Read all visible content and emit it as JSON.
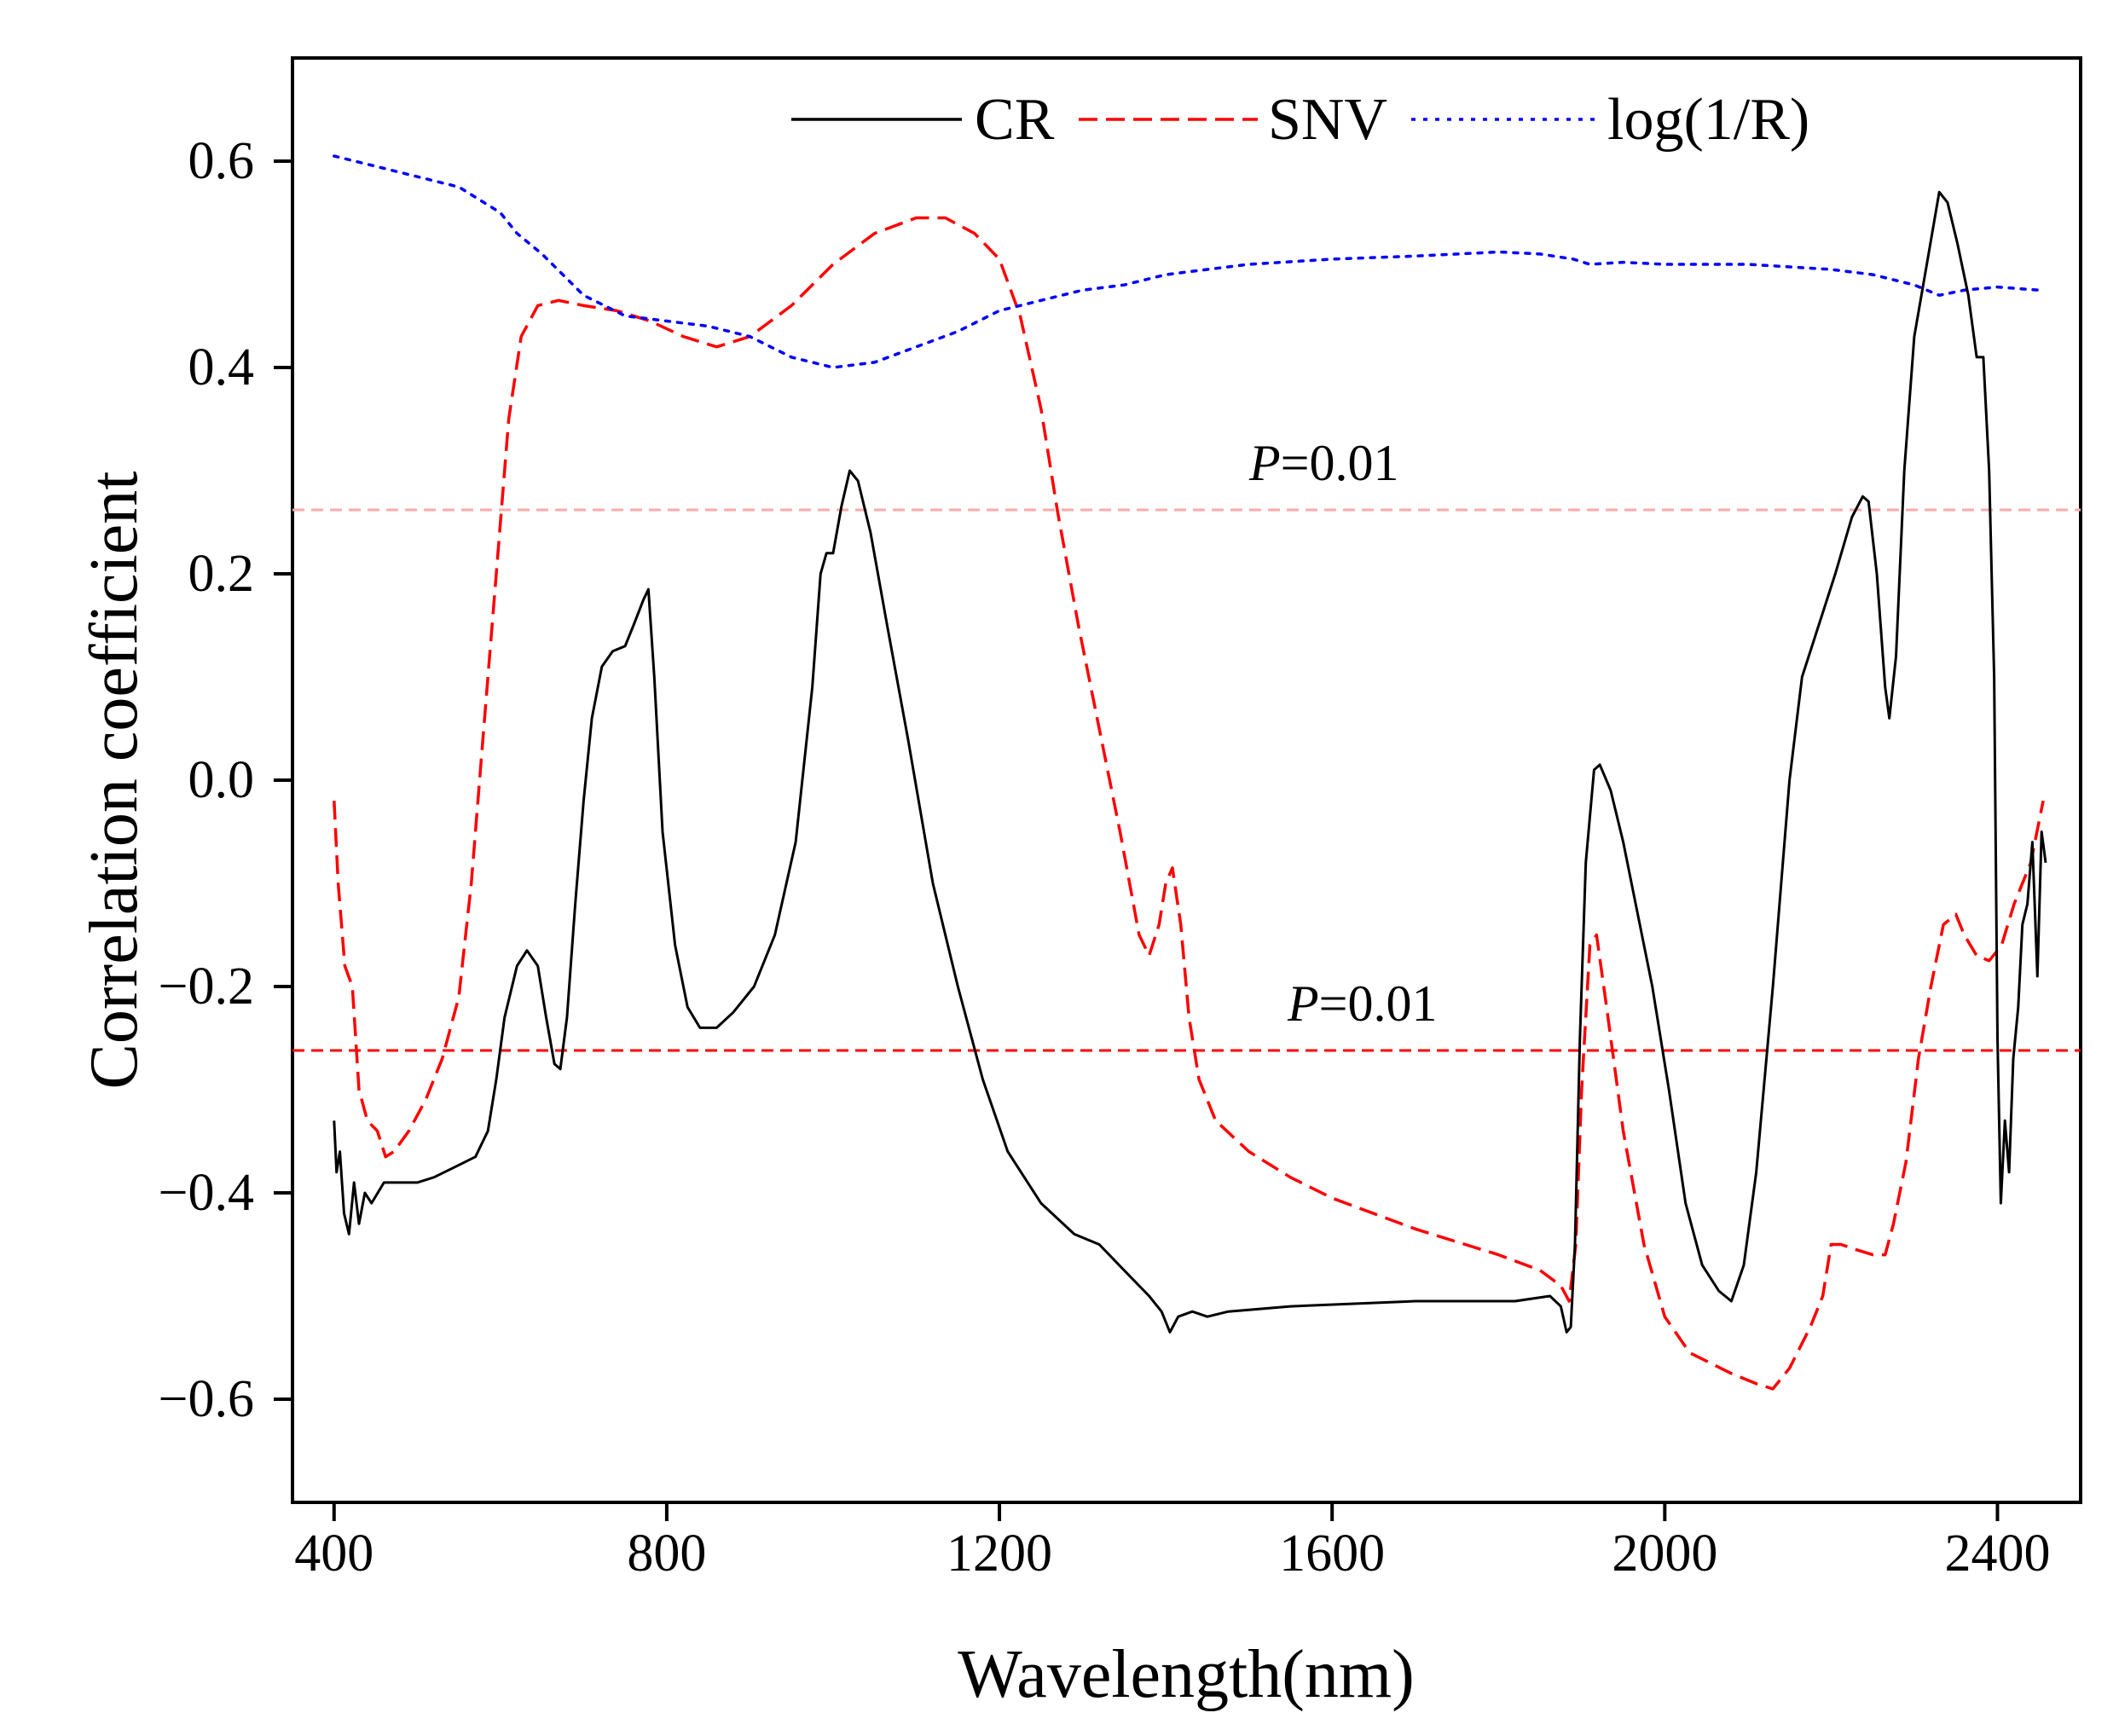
{
  "chart_data": {
    "type": "line",
    "xlabel": "Wavelength(nm)",
    "ylabel": "Correlation coefficient",
    "xlim": [
      350,
      2500
    ],
    "ylim": [
      -0.7,
      0.7
    ],
    "xticks": [
      400,
      800,
      1200,
      1600,
      2000,
      2400
    ],
    "yticks": [
      -0.6,
      -0.4,
      -0.2,
      0.0,
      0.2,
      0.4,
      0.6
    ],
    "ytick_labels": [
      "−0.6",
      "−0.4",
      "−0.2",
      "0.0",
      "0.2",
      "0.4",
      "0.6"
    ],
    "legend_position": "top",
    "series": [
      {
        "name": "CR",
        "color": "#000000",
        "style": "solid",
        "points": [
          [
            400,
            -0.33
          ],
          [
            403,
            -0.38
          ],
          [
            407,
            -0.36
          ],
          [
            412,
            -0.42
          ],
          [
            418,
            -0.44
          ],
          [
            424,
            -0.39
          ],
          [
            430,
            -0.43
          ],
          [
            437,
            -0.4
          ],
          [
            445,
            -0.41
          ],
          [
            460,
            -0.39
          ],
          [
            480,
            -0.39
          ],
          [
            500,
            -0.39
          ],
          [
            520,
            -0.385
          ],
          [
            545,
            -0.375
          ],
          [
            570,
            -0.365
          ],
          [
            585,
            -0.34
          ],
          [
            595,
            -0.29
          ],
          [
            605,
            -0.23
          ],
          [
            620,
            -0.18
          ],
          [
            632,
            -0.165
          ],
          [
            645,
            -0.18
          ],
          [
            655,
            -0.23
          ],
          [
            665,
            -0.275
          ],
          [
            672,
            -0.28
          ],
          [
            680,
            -0.23
          ],
          [
            690,
            -0.12
          ],
          [
            700,
            -0.02
          ],
          [
            710,
            0.06
          ],
          [
            722,
            0.11
          ],
          [
            735,
            0.125
          ],
          [
            750,
            0.13
          ],
          [
            760,
            0.15
          ],
          [
            772,
            0.175
          ],
          [
            778,
            0.185
          ],
          [
            785,
            0.1
          ],
          [
            795,
            -0.05
          ],
          [
            810,
            -0.16
          ],
          [
            825,
            -0.22
          ],
          [
            840,
            -0.24
          ],
          [
            860,
            -0.24
          ],
          [
            880,
            -0.225
          ],
          [
            905,
            -0.2
          ],
          [
            930,
            -0.15
          ],
          [
            955,
            -0.06
          ],
          [
            975,
            0.09
          ],
          [
            985,
            0.2
          ],
          [
            992,
            0.22
          ],
          [
            1000,
            0.22
          ],
          [
            1010,
            0.265
          ],
          [
            1020,
            0.3
          ],
          [
            1030,
            0.29
          ],
          [
            1045,
            0.24
          ],
          [
            1065,
            0.15
          ],
          [
            1090,
            0.04
          ],
          [
            1120,
            -0.1
          ],
          [
            1150,
            -0.2
          ],
          [
            1180,
            -0.29
          ],
          [
            1210,
            -0.36
          ],
          [
            1250,
            -0.41
          ],
          [
            1290,
            -0.44
          ],
          [
            1320,
            -0.45
          ],
          [
            1350,
            -0.475
          ],
          [
            1380,
            -0.5
          ],
          [
            1395,
            -0.515
          ],
          [
            1405,
            -0.535
          ],
          [
            1415,
            -0.52
          ],
          [
            1432,
            -0.515
          ],
          [
            1450,
            -0.52
          ],
          [
            1475,
            -0.515
          ],
          [
            1550,
            -0.51
          ],
          [
            1700,
            -0.505
          ],
          [
            1820,
            -0.505
          ],
          [
            1862,
            -0.5
          ],
          [
            1875,
            -0.51
          ],
          [
            1882,
            -0.535
          ],
          [
            1887,
            -0.53
          ],
          [
            1892,
            -0.45
          ],
          [
            1898,
            -0.25
          ],
          [
            1905,
            -0.08
          ],
          [
            1915,
            0.01
          ],
          [
            1922,
            0.015
          ],
          [
            1935,
            -0.01
          ],
          [
            1950,
            -0.06
          ],
          [
            1965,
            -0.12
          ],
          [
            1985,
            -0.2
          ],
          [
            2005,
            -0.3
          ],
          [
            2025,
            -0.41
          ],
          [
            2045,
            -0.47
          ],
          [
            2065,
            -0.495
          ],
          [
            2080,
            -0.505
          ],
          [
            2095,
            -0.47
          ],
          [
            2110,
            -0.38
          ],
          [
            2130,
            -0.2
          ],
          [
            2150,
            0.0
          ],
          [
            2165,
            0.1
          ],
          [
            2185,
            0.15
          ],
          [
            2205,
            0.2
          ],
          [
            2225,
            0.255
          ],
          [
            2238,
            0.275
          ],
          [
            2245,
            0.27
          ],
          [
            2255,
            0.2
          ],
          [
            2265,
            0.09
          ],
          [
            2270,
            0.06
          ],
          [
            2278,
            0.12
          ],
          [
            2288,
            0.3
          ],
          [
            2300,
            0.43
          ],
          [
            2315,
            0.5
          ],
          [
            2330,
            0.57
          ],
          [
            2340,
            0.56
          ],
          [
            2352,
            0.52
          ],
          [
            2365,
            0.47
          ],
          [
            2375,
            0.41
          ],
          [
            2383,
            0.41
          ],
          [
            2390,
            0.3
          ],
          [
            2396,
            0.1
          ],
          [
            2400,
            -0.25
          ],
          [
            2404,
            -0.41
          ],
          [
            2409,
            -0.33
          ],
          [
            2414,
            -0.38
          ],
          [
            2419,
            -0.27
          ],
          [
            2425,
            -0.22
          ],
          [
            2430,
            -0.14
          ],
          [
            2436,
            -0.12
          ],
          [
            2442,
            -0.06
          ],
          [
            2448,
            -0.19
          ],
          [
            2453,
            -0.05
          ],
          [
            2458,
            -0.08
          ]
        ]
      },
      {
        "name": "SNV",
        "color": "#ff0000",
        "style": "dashed",
        "points": [
          [
            400,
            -0.02
          ],
          [
            405,
            -0.1
          ],
          [
            413,
            -0.18
          ],
          [
            422,
            -0.2
          ],
          [
            430,
            -0.3
          ],
          [
            440,
            -0.33
          ],
          [
            452,
            -0.34
          ],
          [
            462,
            -0.365
          ],
          [
            472,
            -0.36
          ],
          [
            490,
            -0.34
          ],
          [
            510,
            -0.31
          ],
          [
            530,
            -0.27
          ],
          [
            550,
            -0.21
          ],
          [
            565,
            -0.1
          ],
          [
            580,
            0.05
          ],
          [
            595,
            0.2
          ],
          [
            610,
            0.35
          ],
          [
            625,
            0.43
          ],
          [
            645,
            0.46
          ],
          [
            670,
            0.465
          ],
          [
            700,
            0.46
          ],
          [
            740,
            0.455
          ],
          [
            780,
            0.445
          ],
          [
            820,
            0.43
          ],
          [
            860,
            0.42
          ],
          [
            900,
            0.43
          ],
          [
            950,
            0.46
          ],
          [
            1000,
            0.5
          ],
          [
            1050,
            0.53
          ],
          [
            1100,
            0.545
          ],
          [
            1135,
            0.545
          ],
          [
            1170,
            0.53
          ],
          [
            1200,
            0.505
          ],
          [
            1225,
            0.45
          ],
          [
            1250,
            0.36
          ],
          [
            1270,
            0.26
          ],
          [
            1295,
            0.15
          ],
          [
            1320,
            0.05
          ],
          [
            1345,
            -0.05
          ],
          [
            1368,
            -0.15
          ],
          [
            1380,
            -0.17
          ],
          [
            1392,
            -0.14
          ],
          [
            1400,
            -0.1
          ],
          [
            1408,
            -0.085
          ],
          [
            1418,
            -0.14
          ],
          [
            1428,
            -0.23
          ],
          [
            1440,
            -0.29
          ],
          [
            1460,
            -0.33
          ],
          [
            1500,
            -0.36
          ],
          [
            1550,
            -0.385
          ],
          [
            1600,
            -0.405
          ],
          [
            1700,
            -0.435
          ],
          [
            1800,
            -0.46
          ],
          [
            1850,
            -0.475
          ],
          [
            1875,
            -0.49
          ],
          [
            1885,
            -0.505
          ],
          [
            1893,
            -0.45
          ],
          [
            1900,
            -0.3
          ],
          [
            1910,
            -0.16
          ],
          [
            1918,
            -0.15
          ],
          [
            1930,
            -0.22
          ],
          [
            1950,
            -0.34
          ],
          [
            1975,
            -0.45
          ],
          [
            2000,
            -0.52
          ],
          [
            2030,
            -0.555
          ],
          [
            2080,
            -0.575
          ],
          [
            2110,
            -0.585
          ],
          [
            2130,
            -0.59
          ],
          [
            2150,
            -0.57
          ],
          [
            2175,
            -0.53
          ],
          [
            2190,
            -0.5
          ],
          [
            2200,
            -0.45
          ],
          [
            2212,
            -0.45
          ],
          [
            2230,
            -0.455
          ],
          [
            2250,
            -0.46
          ],
          [
            2265,
            -0.46
          ],
          [
            2275,
            -0.43
          ],
          [
            2290,
            -0.37
          ],
          [
            2305,
            -0.27
          ],
          [
            2320,
            -0.2
          ],
          [
            2335,
            -0.14
          ],
          [
            2350,
            -0.13
          ],
          [
            2360,
            -0.15
          ],
          [
            2375,
            -0.17
          ],
          [
            2390,
            -0.175
          ],
          [
            2405,
            -0.16
          ],
          [
            2420,
            -0.12
          ],
          [
            2440,
            -0.08
          ],
          [
            2455,
            -0.02
          ]
        ]
      },
      {
        "name": "log(1/R)",
        "color": "#0000ff",
        "style": "dotted",
        "points": [
          [
            400,
            0.605
          ],
          [
            450,
            0.595
          ],
          [
            500,
            0.585
          ],
          [
            550,
            0.575
          ],
          [
            580,
            0.56
          ],
          [
            600,
            0.55
          ],
          [
            620,
            0.53
          ],
          [
            650,
            0.51
          ],
          [
            700,
            0.47
          ],
          [
            750,
            0.45
          ],
          [
            800,
            0.445
          ],
          [
            850,
            0.44
          ],
          [
            900,
            0.43
          ],
          [
            950,
            0.41
          ],
          [
            1000,
            0.4
          ],
          [
            1050,
            0.405
          ],
          [
            1100,
            0.42
          ],
          [
            1150,
            0.435
          ],
          [
            1200,
            0.455
          ],
          [
            1250,
            0.465
          ],
          [
            1300,
            0.475
          ],
          [
            1350,
            0.48
          ],
          [
            1400,
            0.49
          ],
          [
            1450,
            0.495
          ],
          [
            1500,
            0.5
          ],
          [
            1600,
            0.505
          ],
          [
            1700,
            0.508
          ],
          [
            1800,
            0.512
          ],
          [
            1850,
            0.51
          ],
          [
            1890,
            0.505
          ],
          [
            1910,
            0.5
          ],
          [
            1950,
            0.502
          ],
          [
            2000,
            0.5
          ],
          [
            2100,
            0.5
          ],
          [
            2200,
            0.495
          ],
          [
            2250,
            0.49
          ],
          [
            2300,
            0.48
          ],
          [
            2330,
            0.47
          ],
          [
            2360,
            0.475
          ],
          [
            2400,
            0.478
          ],
          [
            2450,
            0.475
          ]
        ]
      }
    ],
    "reference_lines": [
      {
        "label_prefix": "P",
        "label_suffix": "=0.01",
        "y": 0.262,
        "color": "#ffaaaa",
        "style": "dashed"
      },
      {
        "label_prefix": "P",
        "label_suffix": "=0.01",
        "y": -0.262,
        "color": "#ff0000",
        "style": "dashed"
      }
    ]
  }
}
